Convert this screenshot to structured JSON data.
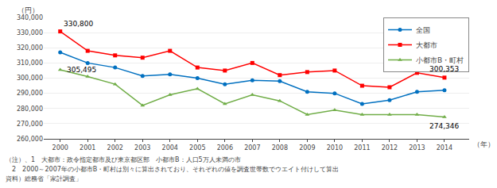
{
  "chart_data": {
    "type": "line",
    "x": [
      2000,
      2001,
      2002,
      2003,
      2004,
      2005,
      2006,
      2007,
      2008,
      2009,
      2010,
      2011,
      2012,
      2013,
      2014
    ],
    "series": [
      {
        "name": "全国",
        "color": "#0070c0",
        "marker": "circle",
        "values": [
          317000,
          310000,
          307000,
          301500,
          302500,
          300000,
          296000,
          298500,
          298000,
          291000,
          290000,
          283000,
          285500,
          291000,
          292000
        ]
      },
      {
        "name": "大都市",
        "color": "#ff0000",
        "marker": "square",
        "values": [
          330800,
          318000,
          315000,
          313500,
          318000,
          307000,
          305000,
          310000,
          302000,
          304000,
          305000,
          295000,
          294000,
          303500,
          300353
        ]
      },
      {
        "name": "小都市B・町村",
        "color": "#70ad47",
        "marker": "triangle-up",
        "values": [
          305495,
          301000,
          296000,
          282000,
          289000,
          293000,
          283000,
          289000,
          285000,
          276000,
          279000,
          276000,
          276000,
          276000,
          274346
        ]
      }
    ],
    "xlim": [
      1999.4,
      2014.9
    ],
    "xticks": [
      2000,
      2001,
      2002,
      2003,
      2004,
      2005,
      2006,
      2007,
      2008,
      2009,
      2010,
      2011,
      2012,
      2013,
      2014
    ],
    "ylim": [
      260000,
      340000
    ],
    "yticks": [
      {
        "value": 260000,
        "label": "260,000"
      },
      {
        "value": 270000,
        "label": "270,000"
      },
      {
        "value": 280000,
        "label": "280,000"
      },
      {
        "value": 290000,
        "label": "290,000"
      },
      {
        "value": 300000,
        "label": "300,000"
      },
      {
        "value": 310000,
        "label": "310,000"
      },
      {
        "value": 320000,
        "label": "320,000"
      },
      {
        "value": 330000,
        "label": "330,000"
      },
      {
        "value": 340000,
        "label": "340,000"
      }
    ],
    "y_label": "（円）",
    "x_label": "（年）",
    "annotations": [
      {
        "text": "330,800",
        "x": 2000,
        "y": 330800
      },
      {
        "text": "305,495",
        "x": 2000,
        "y": 305495
      },
      {
        "text": "300,353",
        "x": 2014,
        "y": 300353
      },
      {
        "text": "274,346",
        "x": 2014,
        "y": 274346
      }
    ],
    "notes": [
      "（注）、1　大都市：政令指定都市及び東京都区部　小都市B：人口5万人未満の市",
      "　2　2000～2007年の小都市B・町村は別々に算出されており、それぞれの値を調査世帯数でウエイト付けして算出",
      "資料）総務省「家計調査」"
    ],
    "grid": true,
    "legend": "upper right"
  }
}
